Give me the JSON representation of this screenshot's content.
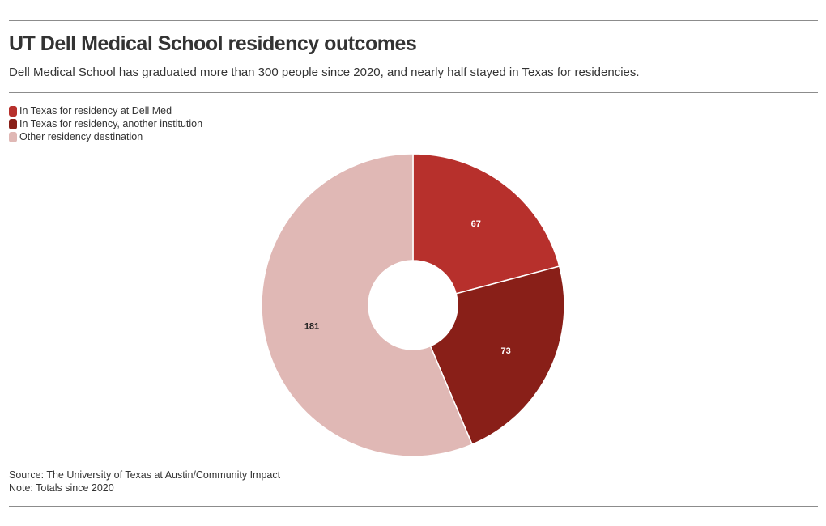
{
  "header": {
    "title": "UT Dell Medical School residency outcomes",
    "subtitle": "Dell Medical School has graduated more than 300 people since 2020, and nearly half stayed in Texas for residencies."
  },
  "legend": {
    "placement": "top-left",
    "items": [
      {
        "label": "In Texas for residency at Dell Med",
        "color": "#b7302c"
      },
      {
        "label": "In Texas for residency, another institution",
        "color": "#891f18"
      },
      {
        "label": "Other residency destination",
        "color": "#e0b8b5"
      }
    ]
  },
  "chart_data": {
    "type": "pie",
    "donut": true,
    "slices": [
      {
        "label": "In Texas for residency at Dell Med",
        "value": 67,
        "color": "#b7302c",
        "label_color": "#ffffff"
      },
      {
        "label": "In Texas for residency, another institution",
        "value": 73,
        "color": "#891f18",
        "label_color": "#ffffff"
      },
      {
        "label": "Other residency destination",
        "value": 181,
        "color": "#e0b8b5",
        "label_color": "#222222"
      }
    ]
  },
  "footer": {
    "source": "Source: The University of Texas at Austin/Community Impact",
    "note": "Note: Totals since 2020"
  }
}
